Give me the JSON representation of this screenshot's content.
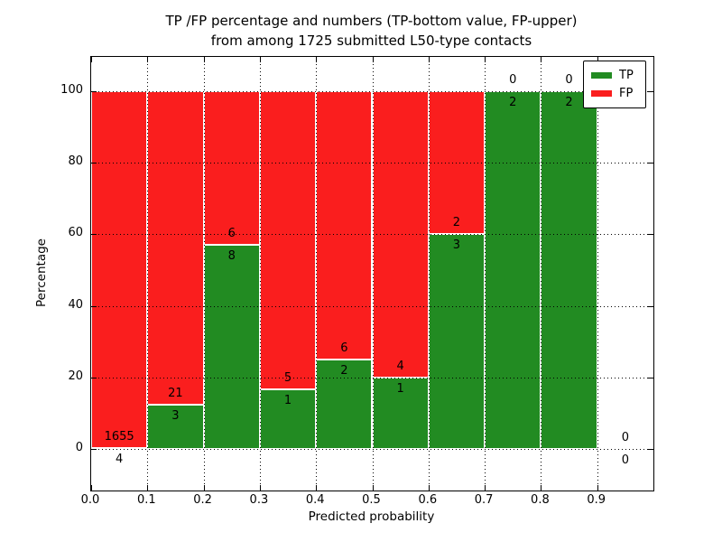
{
  "figure": {
    "title_line1": "TP /FP percentage and numbers (TP-bottom value, FP-upper)",
    "title_line2": "from among 1725 submitted L50-type contacts",
    "background": "#ffffff"
  },
  "axes": {
    "xlabel": "Predicted probability",
    "ylabel": "Percentage",
    "x_tick_values": [
      0.0,
      0.1,
      0.2,
      0.3,
      0.4,
      0.5,
      0.6,
      0.7,
      0.8,
      0.9
    ],
    "x_tick_labels": [
      "0.0",
      "0.1",
      "0.2",
      "0.3",
      "0.4",
      "0.5",
      "0.6",
      "0.7",
      "0.8",
      "0.9"
    ],
    "y_tick_values": [
      0,
      20,
      40,
      60,
      80,
      100
    ],
    "y_tick_labels": [
      "0",
      "20",
      "40",
      "60",
      "80",
      "100"
    ],
    "xlim": [
      0.0,
      1.0
    ],
    "ylim": [
      -11.5,
      109.5
    ],
    "grid": true,
    "grid_style": "dotted",
    "grid_color": "#000000"
  },
  "legend": {
    "position": "upper-right",
    "items": [
      {
        "label": "TP",
        "color": "#228b22"
      },
      {
        "label": "FP",
        "color": "#fa1e1e"
      }
    ]
  },
  "chart_data": {
    "type": "bar",
    "stacked": true,
    "title": "TP /FP percentage and numbers (TP-bottom value, FP-upper) from among 1725 submitted L50-type contacts",
    "xlabel": "Predicted probability",
    "ylabel": "Percentage",
    "total_submitted": 1725,
    "tp_color": "#228b22",
    "fp_color": "#fa1e1e",
    "bar_edge_color": "#ffffff",
    "note": "Each bin stacked to 100%: TP (green) bottom portion = tp/(tp+fp), FP (red) fills to 100. Numbers annotate counts: FP count above green top, TP count below it.",
    "bins": [
      {
        "range": [
          0.0,
          0.1
        ],
        "tp": 4,
        "fp": 1655,
        "tp_pct": 0.24,
        "fp_pct": 99.76
      },
      {
        "range": [
          0.1,
          0.2
        ],
        "tp": 3,
        "fp": 21,
        "tp_pct": 12.5,
        "fp_pct": 87.5
      },
      {
        "range": [
          0.2,
          0.3
        ],
        "tp": 8,
        "fp": 6,
        "tp_pct": 57.14,
        "fp_pct": 42.86
      },
      {
        "range": [
          0.3,
          0.4
        ],
        "tp": 1,
        "fp": 5,
        "tp_pct": 16.67,
        "fp_pct": 83.33
      },
      {
        "range": [
          0.4,
          0.5
        ],
        "tp": 2,
        "fp": 6,
        "tp_pct": 25.0,
        "fp_pct": 75.0
      },
      {
        "range": [
          0.5,
          0.6
        ],
        "tp": 1,
        "fp": 4,
        "tp_pct": 20.0,
        "fp_pct": 80.0
      },
      {
        "range": [
          0.6,
          0.7
        ],
        "tp": 3,
        "fp": 2,
        "tp_pct": 60.0,
        "fp_pct": 40.0
      },
      {
        "range": [
          0.7,
          0.8
        ],
        "tp": 2,
        "fp": 0,
        "tp_pct": 100.0,
        "fp_pct": 0.0
      },
      {
        "range": [
          0.8,
          0.9
        ],
        "tp": 2,
        "fp": 0,
        "tp_pct": 100.0,
        "fp_pct": 0.0
      },
      {
        "range": [
          0.9,
          1.0
        ],
        "tp": 0,
        "fp": 0,
        "tp_pct": null,
        "fp_pct": null
      }
    ]
  }
}
